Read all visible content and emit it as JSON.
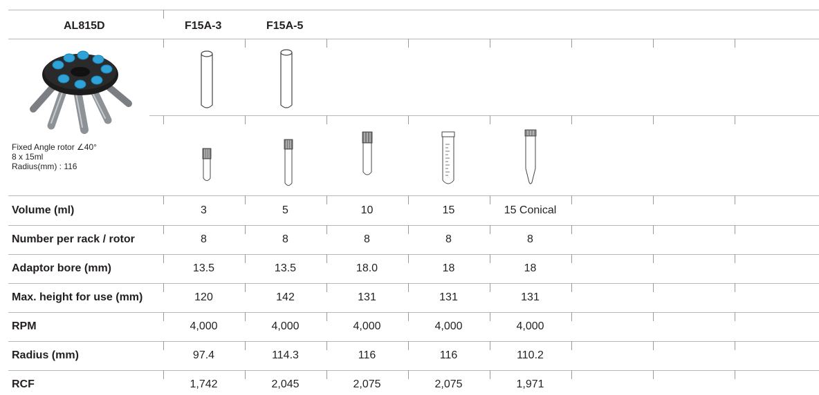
{
  "header": {
    "model": "AL815D",
    "adaptors": [
      "F15A-3",
      "F15A-5"
    ]
  },
  "rotor_info": {
    "line1": "Fixed Angle rotor ∠40°",
    "line2": "8 x 15ml",
    "line3": "Radius(mm) : 116"
  },
  "rows": [
    {
      "label": "Volume (ml)",
      "values": [
        "3",
        "5",
        "10",
        "15",
        "15 Conical"
      ]
    },
    {
      "label": "Number per rack / rotor",
      "values": [
        "8",
        "8",
        "8",
        "8",
        "8"
      ]
    },
    {
      "label": "Adaptor bore (mm)",
      "values": [
        "13.5",
        "13.5",
        "18.0",
        "18",
        "18"
      ]
    },
    {
      "label": "Max. height for use (mm)",
      "values": [
        "120",
        "142",
        "131",
        "131",
        "131"
      ]
    },
    {
      "label": "RPM",
      "values": [
        "4,000",
        "4,000",
        "4,000",
        "4,000",
        "4,000"
      ]
    },
    {
      "label": "Radius (mm)",
      "values": [
        "97.4",
        "114.3",
        "116",
        "116",
        "110.2"
      ]
    },
    {
      "label": "RCF",
      "values": [
        "1,742",
        "2,045",
        "2,075",
        "2,075",
        "1,971"
      ]
    }
  ],
  "colors": {
    "rotor_body": "#1c1c1c",
    "tube_cap": "#2fa3d8",
    "arm": "#8d9296",
    "rule": "#b7b7b7"
  },
  "icons": [
    "rotor-image",
    "adaptor-tube-icon",
    "conical-tube-icon",
    "graduated-tube-icon"
  ]
}
